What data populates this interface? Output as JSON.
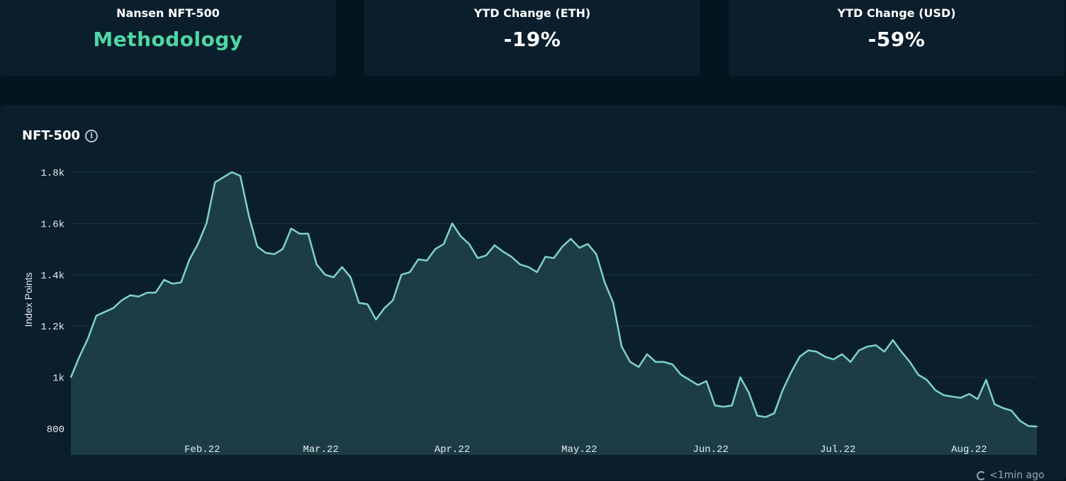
{
  "cards": [
    {
      "label": "Nansen NFT-500",
      "value": "Methodology"
    },
    {
      "label": "YTD Change (ETH)",
      "value": "-19%"
    },
    {
      "label": "YTD Change (USD)",
      "value": "-59%"
    }
  ],
  "panel": {
    "title": "NFT-500",
    "updated": "<1min ago"
  },
  "colors": {
    "accent": "#4fd6a4",
    "line": "#7fd3c3",
    "area": "#1d3d46",
    "grid": "#1c3446",
    "background": "#04141f",
    "panel": "#0a1e2c"
  },
  "icons": {
    "info": "info-icon",
    "refresh": "refresh-icon"
  },
  "chart_data": {
    "type": "area",
    "title": "NFT-500",
    "xlabel": "",
    "ylabel": "Index Points",
    "ylim": [
      700,
      1800
    ],
    "yticks": [
      800,
      1000,
      1200,
      1400,
      1600,
      1800
    ],
    "ytick_labels": [
      "800",
      "1k",
      "1.2k",
      "1.4k",
      "1.6k",
      "1.8k"
    ],
    "xticks": [
      {
        "label": "Feb.22",
        "date": "2022-02-01"
      },
      {
        "label": "Mar.22",
        "date": "2022-03-01"
      },
      {
        "label": "Apr.22",
        "date": "2022-04-01"
      },
      {
        "label": "May.22",
        "date": "2022-05-01"
      },
      {
        "label": "Jun.22",
        "date": "2022-06-01"
      },
      {
        "label": "Jul.22",
        "date": "2022-07-01"
      },
      {
        "label": "Aug.22",
        "date": "2022-08-01"
      }
    ],
    "grid": true,
    "series": [
      {
        "values": [
          [
            "2022-01-01",
            1000
          ],
          [
            "2022-01-03",
            1080
          ],
          [
            "2022-01-05",
            1150
          ],
          [
            "2022-01-07",
            1240
          ],
          [
            "2022-01-09",
            1255
          ],
          [
            "2022-01-11",
            1270
          ],
          [
            "2022-01-13",
            1300
          ],
          [
            "2022-01-15",
            1320
          ],
          [
            "2022-01-17",
            1315
          ],
          [
            "2022-01-19",
            1330
          ],
          [
            "2022-01-21",
            1330
          ],
          [
            "2022-01-23",
            1380
          ],
          [
            "2022-01-25",
            1365
          ],
          [
            "2022-01-27",
            1370
          ],
          [
            "2022-01-29",
            1460
          ],
          [
            "2022-01-31",
            1520
          ],
          [
            "2022-02-02",
            1600
          ],
          [
            "2022-02-04",
            1760
          ],
          [
            "2022-02-06",
            1780
          ],
          [
            "2022-02-08",
            1800
          ],
          [
            "2022-02-10",
            1785
          ],
          [
            "2022-02-12",
            1630
          ],
          [
            "2022-02-14",
            1510
          ],
          [
            "2022-02-16",
            1485
          ],
          [
            "2022-02-18",
            1480
          ],
          [
            "2022-02-20",
            1500
          ],
          [
            "2022-02-22",
            1580
          ],
          [
            "2022-02-24",
            1560
          ],
          [
            "2022-02-26",
            1560
          ],
          [
            "2022-02-28",
            1440
          ],
          [
            "2022-03-02",
            1400
          ],
          [
            "2022-03-04",
            1390
          ],
          [
            "2022-03-06",
            1430
          ],
          [
            "2022-03-08",
            1390
          ],
          [
            "2022-03-10",
            1290
          ],
          [
            "2022-03-12",
            1285
          ],
          [
            "2022-03-14",
            1225
          ],
          [
            "2022-03-16",
            1270
          ],
          [
            "2022-03-18",
            1300
          ],
          [
            "2022-03-20",
            1400
          ],
          [
            "2022-03-22",
            1410
          ],
          [
            "2022-03-24",
            1460
          ],
          [
            "2022-03-26",
            1455
          ],
          [
            "2022-03-28",
            1500
          ],
          [
            "2022-03-30",
            1520
          ],
          [
            "2022-04-01",
            1600
          ],
          [
            "2022-04-03",
            1550
          ],
          [
            "2022-04-05",
            1520
          ],
          [
            "2022-04-07",
            1465
          ],
          [
            "2022-04-09",
            1475
          ],
          [
            "2022-04-11",
            1515
          ],
          [
            "2022-04-13",
            1490
          ],
          [
            "2022-04-15",
            1470
          ],
          [
            "2022-04-17",
            1440
          ],
          [
            "2022-04-19",
            1430
          ],
          [
            "2022-04-21",
            1410
          ],
          [
            "2022-04-23",
            1470
          ],
          [
            "2022-04-25",
            1465
          ],
          [
            "2022-04-27",
            1510
          ],
          [
            "2022-04-29",
            1540
          ],
          [
            "2022-05-01",
            1505
          ],
          [
            "2022-05-03",
            1520
          ],
          [
            "2022-05-05",
            1480
          ],
          [
            "2022-05-07",
            1370
          ],
          [
            "2022-05-09",
            1290
          ],
          [
            "2022-05-11",
            1120
          ],
          [
            "2022-05-13",
            1060
          ],
          [
            "2022-05-15",
            1040
          ],
          [
            "2022-05-17",
            1090
          ],
          [
            "2022-05-19",
            1060
          ],
          [
            "2022-05-21",
            1060
          ],
          [
            "2022-05-23",
            1050
          ],
          [
            "2022-05-25",
            1010
          ],
          [
            "2022-05-27",
            990
          ],
          [
            "2022-05-29",
            970
          ],
          [
            "2022-05-31",
            985
          ],
          [
            "2022-06-02",
            890
          ],
          [
            "2022-06-04",
            885
          ],
          [
            "2022-06-06",
            890
          ],
          [
            "2022-06-08",
            1000
          ],
          [
            "2022-06-10",
            940
          ],
          [
            "2022-06-12",
            850
          ],
          [
            "2022-06-14",
            845
          ],
          [
            "2022-06-16",
            860
          ],
          [
            "2022-06-18",
            950
          ],
          [
            "2022-06-20",
            1020
          ],
          [
            "2022-06-22",
            1080
          ],
          [
            "2022-06-24",
            1105
          ],
          [
            "2022-06-26",
            1100
          ],
          [
            "2022-06-28",
            1080
          ],
          [
            "2022-06-30",
            1070
          ],
          [
            "2022-07-02",
            1090
          ],
          [
            "2022-07-04",
            1060
          ],
          [
            "2022-07-06",
            1105
          ],
          [
            "2022-07-08",
            1120
          ],
          [
            "2022-07-10",
            1125
          ],
          [
            "2022-07-12",
            1100
          ],
          [
            "2022-07-14",
            1145
          ],
          [
            "2022-07-16",
            1100
          ],
          [
            "2022-07-18",
            1060
          ],
          [
            "2022-07-20",
            1010
          ],
          [
            "2022-07-22",
            990
          ],
          [
            "2022-07-24",
            950
          ],
          [
            "2022-07-26",
            930
          ],
          [
            "2022-07-28",
            925
          ],
          [
            "2022-07-30",
            920
          ],
          [
            "2022-08-01",
            935
          ],
          [
            "2022-08-03",
            915
          ],
          [
            "2022-08-05",
            990
          ],
          [
            "2022-08-07",
            895
          ],
          [
            "2022-08-09",
            880
          ],
          [
            "2022-08-11",
            870
          ],
          [
            "2022-08-13",
            830
          ],
          [
            "2022-08-15",
            810
          ],
          [
            "2022-08-17",
            808
          ]
        ]
      }
    ]
  }
}
